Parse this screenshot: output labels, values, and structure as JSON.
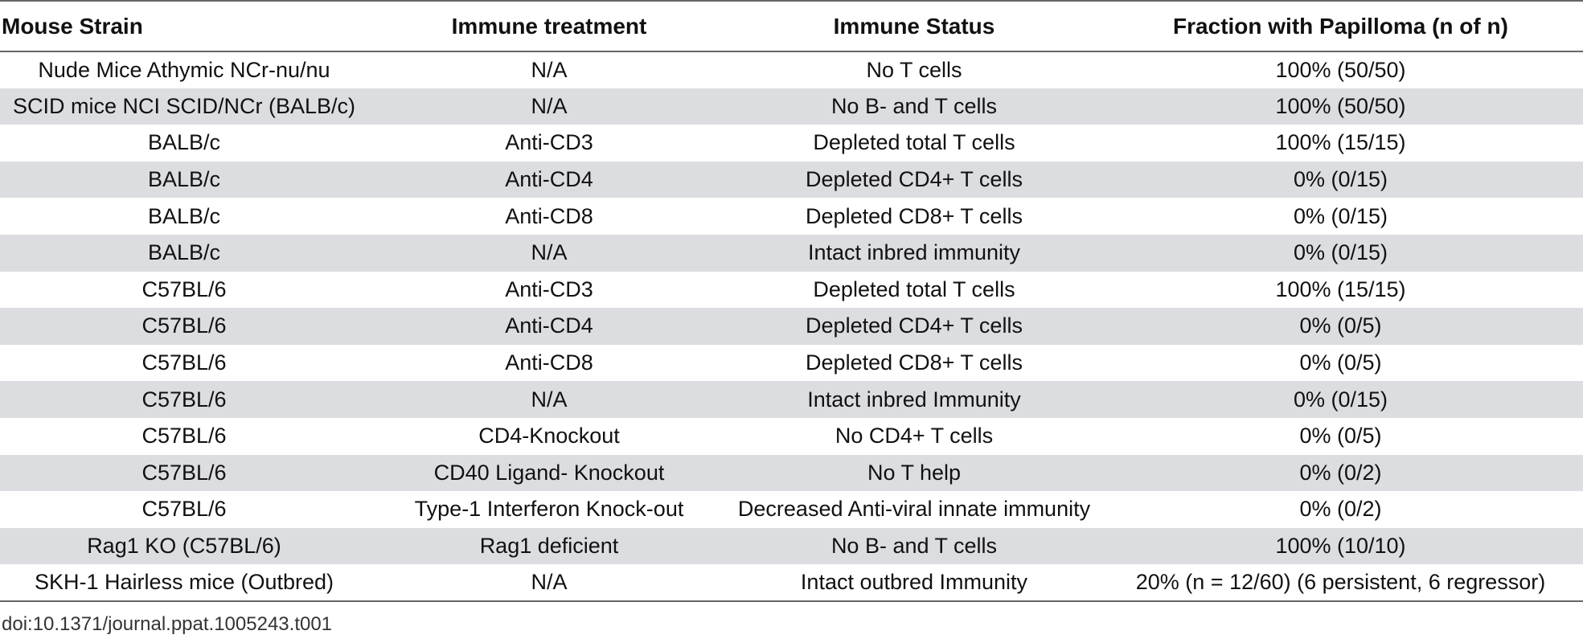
{
  "table": {
    "headers": [
      "Mouse Strain",
      "Immune treatment",
      "Immune Status",
      "Fraction with Papilloma (n of n)"
    ],
    "rows": [
      [
        "Nude Mice Athymic NCr-nu/nu",
        "N/A",
        "No T cells",
        "100% (50/50)"
      ],
      [
        "SCID mice NCI SCID/NCr (BALB/c)",
        "N/A",
        "No B- and T cells",
        "100% (50/50)"
      ],
      [
        "BALB/c",
        "Anti-CD3",
        "Depleted total T cells",
        "100% (15/15)"
      ],
      [
        "BALB/c",
        "Anti-CD4",
        "Depleted CD4+ T cells",
        "0% (0/15)"
      ],
      [
        "BALB/c",
        "Anti-CD8",
        "Depleted CD8+ T cells",
        "0% (0/15)"
      ],
      [
        "BALB/c",
        "N/A",
        "Intact inbred immunity",
        "0% (0/15)"
      ],
      [
        "C57BL/6",
        "Anti-CD3",
        "Depleted total T cells",
        "100% (15/15)"
      ],
      [
        "C57BL/6",
        "Anti-CD4",
        "Depleted CD4+ T cells",
        "0% (0/5)"
      ],
      [
        "C57BL/6",
        "Anti-CD8",
        "Depleted CD8+ T cells",
        "0% (0/5)"
      ],
      [
        "C57BL/6",
        "N/A",
        "Intact inbred Immunity",
        "0% (0/15)"
      ],
      [
        "C57BL/6",
        "CD4-Knockout",
        "No CD4+ T cells",
        "0% (0/5)"
      ],
      [
        "C57BL/6",
        "CD40 Ligand- Knockout",
        "No T help",
        "0% (0/2)"
      ],
      [
        "C57BL/6",
        "Type-1 Interferon Knock-out",
        "Decreased Anti-viral innate immunity",
        "0% (0/2)"
      ],
      [
        "Rag1 KO (C57BL/6)",
        "Rag1 deficient",
        "No B- and T cells",
        "100% (10/10)"
      ],
      [
        "SKH-1 Hairless mice (Outbred)",
        "N/A",
        "Intact outbred Immunity",
        "20% (n = 12/60) (6 persistent, 6 regressor)"
      ]
    ]
  },
  "footer": {
    "doi": "doi:10.1371/journal.ppat.1005243.t001"
  },
  "colors": {
    "stripe": "#dcdde0",
    "rule": "#666666"
  }
}
